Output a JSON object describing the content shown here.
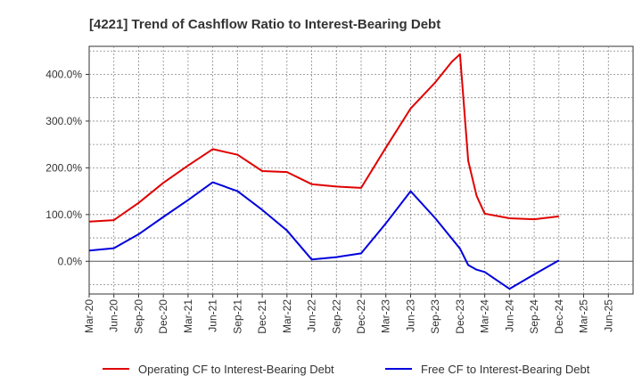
{
  "chart_data": {
    "type": "line",
    "title": "[4221]  Trend of Cashflow Ratio to Interest-Bearing Debt",
    "x_categories": [
      "Mar-20",
      "Jun-20",
      "Sep-20",
      "Dec-20",
      "Mar-21",
      "Jun-21",
      "Sep-21",
      "Dec-21",
      "Mar-22",
      "Jun-22",
      "Sep-22",
      "Dec-22",
      "Mar-23",
      "Jun-23",
      "Sep-23",
      "Dec-23",
      "Mar-24",
      "Jun-24",
      "Sep-24",
      "Dec-24",
      "Mar-25",
      "Jun-25"
    ],
    "y_ticks": [
      0,
      100,
      200,
      300,
      400
    ],
    "y_tick_labels": [
      "0.0%",
      "100.0%",
      "200.0%",
      "300.0%",
      "400.0%"
    ],
    "ylim": [
      -70,
      460
    ],
    "grid": true,
    "legend_position": "bottom",
    "series": [
      {
        "name": "Operating CF to Interest-Bearing Debt",
        "color": "#e00000",
        "points": [
          [
            0,
            85
          ],
          [
            1,
            88
          ],
          [
            2,
            125
          ],
          [
            3,
            168
          ],
          [
            4,
            205
          ],
          [
            5,
            240
          ],
          [
            6,
            228
          ],
          [
            7,
            193
          ],
          [
            8,
            191
          ],
          [
            9,
            165
          ],
          [
            10,
            160
          ],
          [
            11,
            157
          ],
          [
            12,
            243
          ],
          [
            13,
            327
          ],
          [
            14,
            383
          ],
          [
            14.67,
            427
          ],
          [
            15,
            443
          ],
          [
            15.33,
            215
          ],
          [
            15.67,
            140
          ],
          [
            16,
            102
          ],
          [
            17,
            92
          ],
          [
            18,
            90
          ],
          [
            19,
            96
          ]
        ]
      },
      {
        "name": "Free CF to Interest-Bearing Debt",
        "color": "#0000dd",
        "points": [
          [
            0,
            23
          ],
          [
            1,
            28
          ],
          [
            2,
            58
          ],
          [
            3,
            95
          ],
          [
            4,
            131
          ],
          [
            5,
            169
          ],
          [
            6,
            150
          ],
          [
            7,
            110
          ],
          [
            8,
            66
          ],
          [
            9,
            4
          ],
          [
            10,
            9
          ],
          [
            11,
            17
          ],
          [
            12,
            81
          ],
          [
            13,
            150
          ],
          [
            14,
            92
          ],
          [
            15,
            27
          ],
          [
            15.33,
            -8
          ],
          [
            15.67,
            -18
          ],
          [
            16,
            -23
          ],
          [
            17,
            -59
          ],
          [
            18,
            -28
          ],
          [
            19,
            2
          ]
        ]
      }
    ]
  }
}
